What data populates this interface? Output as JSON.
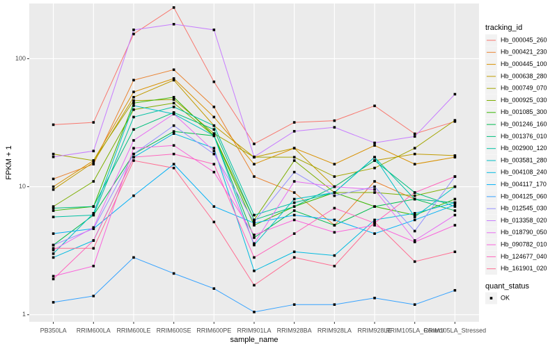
{
  "chart_data": {
    "type": "line",
    "y_axis_title": "FPKM + 1",
    "x_axis_title": "sample_name",
    "log_y": true,
    "grid": true,
    "categories": [
      "PB350LA",
      "RRIM600LA",
      "RRIM600LE",
      "RRIM600SE",
      "RRIM600PE",
      "RRIM901LA",
      "RRIM928BA",
      "RRIM928LA",
      "RRIM928LE",
      "RRIM105LA_Control",
      "RRIM105LA_Stressed"
    ],
    "ylim": [
      0.88,
      270
    ],
    "yticks": [
      1,
      10,
      100
    ],
    "legend_title": "tracking_id",
    "series": [
      {
        "name": "Hb_000045_260",
        "color": "#F8766D",
        "values": [
          30.5,
          31.8,
          156,
          251,
          66,
          21.6,
          31.8,
          32.8,
          42.8,
          25.9,
          32.3
        ]
      },
      {
        "name": "Hb_000421_230",
        "color": "#EA8331",
        "values": [
          11.5,
          15,
          68,
          82,
          42,
          12,
          9,
          5,
          11,
          8,
          7.5
        ]
      },
      {
        "name": "Hb_000445_100",
        "color": "#D89000",
        "values": [
          10,
          16,
          55,
          70,
          35,
          15,
          20,
          15,
          21,
          15,
          17
        ]
      },
      {
        "name": "Hb_000638_280",
        "color": "#C09B00",
        "values": [
          9.5,
          15.5,
          50,
          68,
          30,
          17,
          20,
          10,
          16,
          18,
          17.5
        ]
      },
      {
        "name": "Hb_000749_070",
        "color": "#A3A500",
        "values": [
          18,
          16,
          47,
          48,
          26,
          17,
          17,
          12,
          14,
          20,
          33
        ]
      },
      {
        "name": "Hb_000925_030",
        "color": "#7CAE00",
        "values": [
          7,
          11,
          40,
          45,
          25,
          5.5,
          16,
          9,
          9,
          8.5,
          10
        ]
      },
      {
        "name": "Hb_001085_300",
        "color": "#39B600",
        "values": [
          6.5,
          7,
          45,
          50,
          25,
          5,
          7,
          9,
          7,
          6,
          8
        ]
      },
      {
        "name": "Hb_001246_160",
        "color": "#00BB4E",
        "values": [
          3.5,
          6,
          18,
          27,
          25,
          4,
          6.5,
          5,
          7,
          8,
          6.5
        ]
      },
      {
        "name": "Hb_001376_010",
        "color": "#00BF7D",
        "values": [
          6.8,
          7,
          28,
          38,
          28,
          5.5,
          7,
          10,
          16,
          9,
          7
        ]
      },
      {
        "name": "Hb_002900_120",
        "color": "#00C1A3",
        "values": [
          5.8,
          6,
          35,
          42,
          30,
          6,
          7.5,
          9,
          17,
          8,
          7.5
        ]
      },
      {
        "name": "Hb_003581_280",
        "color": "#00BFC4",
        "values": [
          3,
          6.2,
          43,
          37,
          25,
          3.5,
          8,
          9,
          17,
          5.8,
          10
        ]
      },
      {
        "name": "Hb_004108_240",
        "color": "#00BAE0",
        "values": [
          2.8,
          3.8,
          17,
          26,
          20,
          2.2,
          3.1,
          2.9,
          5.5,
          6.2,
          7.5
        ]
      },
      {
        "name": "Hb_004117_170",
        "color": "#00B0F6",
        "values": [
          4.3,
          4.7,
          8.5,
          15,
          7,
          5.2,
          6,
          5.5,
          4.3,
          5.5,
          7.2
        ]
      },
      {
        "name": "Hb_004125_060",
        "color": "#35A2FF",
        "values": [
          1.25,
          1.4,
          2.8,
          2.1,
          1.6,
          1.05,
          1.2,
          1.2,
          1.35,
          1.2,
          1.55
        ]
      },
      {
        "name": "Hb_012545_030",
        "color": "#9590FF",
        "values": [
          3.5,
          4.7,
          18,
          30,
          18,
          5.3,
          13,
          8.5,
          10,
          4.5,
          12
        ]
      },
      {
        "name": "Hb_013358_020",
        "color": "#C77CFF",
        "values": [
          17.1,
          19,
          168,
          186,
          168,
          17.1,
          27.1,
          29.1,
          22,
          24.7,
          52.8
        ]
      },
      {
        "name": "Hb_018790_050",
        "color": "#E76BF3",
        "values": [
          3.2,
          4.8,
          23,
          37,
          19,
          3.6,
          11,
          10,
          9.5,
          3.8,
          6
        ]
      },
      {
        "name": "Hb_090782_010",
        "color": "#FA62DB",
        "values": [
          2,
          2.4,
          20,
          21,
          13,
          4.2,
          5.5,
          4.4,
          5,
          3.7,
          5
        ]
      },
      {
        "name": "Hb_124677_040",
        "color": "#FF62BC",
        "values": [
          1.9,
          3.8,
          17,
          18,
          15,
          2.8,
          4.3,
          6.8,
          5.2,
          9,
          12
        ]
      },
      {
        "name": "Hb_161901_020",
        "color": "#FF6C91",
        "values": [
          3.3,
          3.3,
          16,
          14,
          5.3,
          1.7,
          2.8,
          2.4,
          5.3,
          2.6,
          3.1
        ]
      }
    ],
    "shape_legend": {
      "title": "quant_status",
      "labels": [
        "OK"
      ]
    }
  }
}
